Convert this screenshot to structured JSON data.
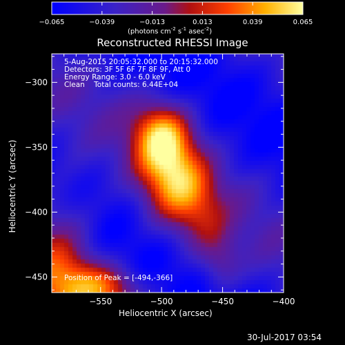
{
  "colorbar": {
    "ticks": [
      "-0.065",
      "-0.039",
      "-0.013",
      "0.013",
      "0.039",
      "0.065"
    ],
    "tick_values": [
      -0.065,
      -0.039,
      -0.013,
      0.013,
      0.039,
      0.065
    ],
    "range": [
      -0.065,
      0.065
    ],
    "units_prefix": "(photons cm",
    "units_exp1": "-2",
    "units_mid1": " s",
    "units_exp2": "-1",
    "units_mid2": " asec",
    "units_exp3": "-2",
    "units_suffix": ")"
  },
  "chart_data": {
    "type": "heatmap",
    "title": "Reconstructed RHESSI Image",
    "xlabel": "Heliocentric X (arcsec)",
    "ylabel": "Heliocentric Y (arcsec)",
    "xlim": [
      -590,
      -400
    ],
    "ylim": [
      -462,
      -278
    ],
    "xticks": [
      -550,
      -500,
      -450,
      -400
    ],
    "yticks": [
      -300,
      -350,
      -400,
      -450
    ],
    "xtick_labels": [
      "−550",
      "−500",
      "−450",
      "−400"
    ],
    "ytick_labels": [
      "−300",
      "−350",
      "−400",
      "−450"
    ],
    "colormap": "blue-purple-red-yellow-white",
    "annotations": {
      "time": "5-Aug-2015 20:05:32.000 to 20:15:32.000",
      "detectors": "Detectors: 3F 5F 6F 7F 8F 9F, Att 0",
      "energy": "Energy Range: 3.0 - 6.0 keV",
      "clean": "Clean",
      "counts": "Total counts: 6.44E+04",
      "peak": "Position of Peak = [-494,-366]"
    },
    "peak": [
      -494,
      -366
    ],
    "sources": [
      {
        "x": -494,
        "y": -366,
        "amp": 0.08,
        "sx": 18,
        "sy": 28
      },
      {
        "x": -503,
        "y": -338,
        "amp": 0.045,
        "sx": 16,
        "sy": 16
      },
      {
        "x": -470,
        "y": -400,
        "amp": 0.04,
        "sx": 16,
        "sy": 24
      },
      {
        "x": -452,
        "y": -440,
        "amp": 0.032,
        "sx": 12,
        "sy": 16
      },
      {
        "x": -585,
        "y": -440,
        "amp": 0.055,
        "sx": 22,
        "sy": 42
      },
      {
        "x": -538,
        "y": -460,
        "amp": 0.04,
        "sx": 18,
        "sy": 12
      },
      {
        "x": -560,
        "y": -455,
        "amp": 0.035,
        "sx": 20,
        "sy": 14
      }
    ],
    "background_level": -0.045
  },
  "footer": {
    "timestamp": "30-Jul-2017 03:54"
  }
}
